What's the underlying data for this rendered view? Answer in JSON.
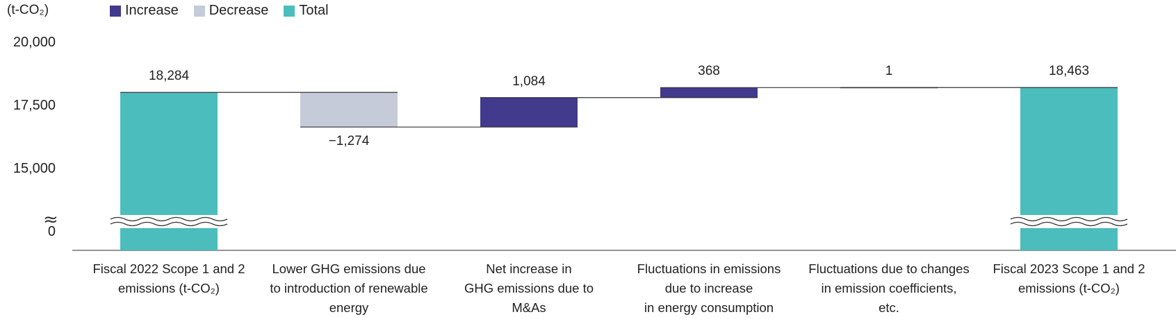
{
  "unit_label": "(t-CO₂)",
  "legend": [
    {
      "label": "Increase",
      "color": "#423a8c"
    },
    {
      "label": "Decrease",
      "color": "#c5cbd8"
    },
    {
      "label": "Total",
      "color": "#4bbdbd"
    }
  ],
  "y_ticks": [
    "20,000",
    "17,500",
    "15,000",
    "0"
  ],
  "chart_data": {
    "type": "bar",
    "subtype": "waterfall",
    "title": "",
    "xlabel": "",
    "ylabel": "(t-CO₂)",
    "axis_break": true,
    "ylim": [
      0,
      20000
    ],
    "categories": [
      [
        "Fiscal 2022 Scope 1 and 2",
        "emissions (t-CO₂)"
      ],
      [
        "Lower GHG emissions due",
        "to introduction of renewable",
        "energy"
      ],
      [
        "Net increase in",
        "GHG emissions due to",
        "M&As"
      ],
      [
        "Fluctuations in emissions",
        "due to increase",
        "in energy consumption"
      ],
      [
        "Fluctuations due to changes",
        "in emission coefficients,",
        "etc."
      ],
      [
        "Fiscal 2023 Scope 1 and 2",
        "emissions (t-CO₂)"
      ]
    ],
    "values": [
      18284,
      -1274,
      1084,
      368,
      1,
      18463
    ],
    "value_labels": [
      "18,284",
      "−1,274",
      "1,084",
      "368",
      "1",
      "18,463"
    ],
    "kinds": [
      "Total",
      "Decrease",
      "Increase",
      "Increase",
      "Increase",
      "Total"
    ]
  }
}
